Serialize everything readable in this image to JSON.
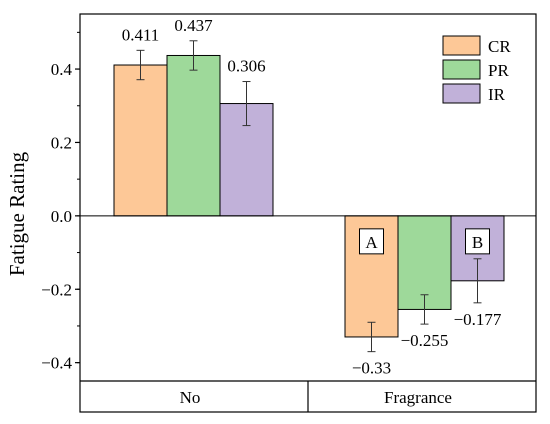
{
  "colors": {
    "CR": "#fdc897",
    "PR": "#9ed99a",
    "IR": "#c1b1d9"
  },
  "chart_data": {
    "type": "bar",
    "title": "",
    "xlabel": "",
    "ylabel": "Fatigue Rating",
    "categories": [
      "No",
      "Fragrance"
    ],
    "ylim": [
      -0.45,
      0.55
    ],
    "yticks": [
      -0.4,
      -0.2,
      0.0,
      0.2,
      0.4
    ],
    "ytick_labels": [
      "−0.4",
      "−0.2",
      "0.0",
      "0.2",
      "0.4"
    ],
    "legend_position": "top-right",
    "series": [
      {
        "name": "CR",
        "values": [
          0.411,
          -0.33
        ],
        "errors": [
          0.04,
          0.04
        ],
        "labels": [
          "0.411",
          "−0.33"
        ]
      },
      {
        "name": "PR",
        "values": [
          0.437,
          -0.255
        ],
        "errors": [
          0.04,
          0.04
        ],
        "labels": [
          "0.437",
          "−0.255"
        ]
      },
      {
        "name": "IR",
        "values": [
          0.306,
          -0.177
        ],
        "errors": [
          0.06,
          0.06
        ],
        "labels": [
          "0.306",
          "−0.177"
        ]
      }
    ],
    "annotations": [
      {
        "text": "A",
        "category": 1,
        "series": 0
      },
      {
        "text": "B",
        "category": 1,
        "series": 2
      }
    ]
  }
}
